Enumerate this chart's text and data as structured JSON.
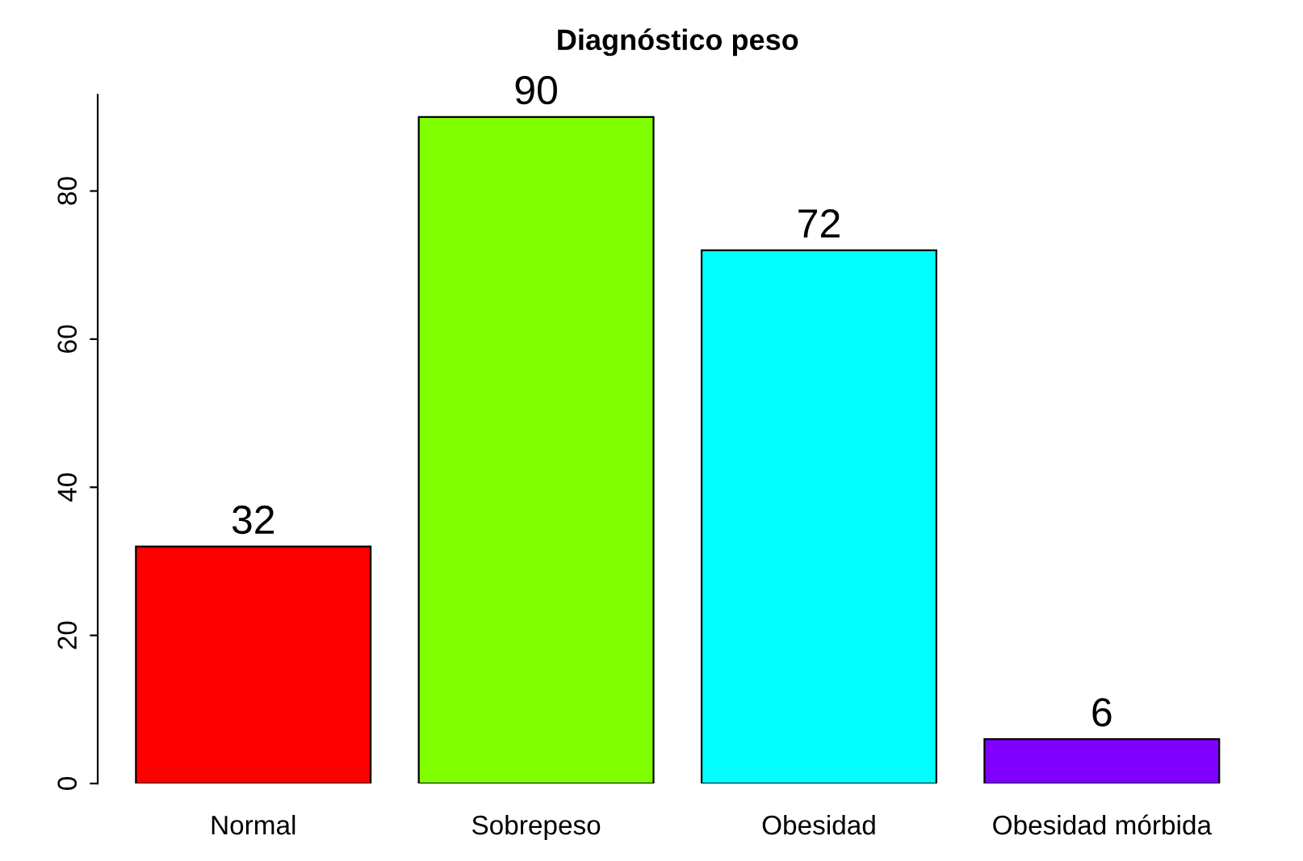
{
  "chart_data": {
    "type": "bar",
    "title": "Diagnóstico peso",
    "categories": [
      "Normal",
      "Sobrepeso",
      "Obesidad",
      "Obesidad mórbida"
    ],
    "values": [
      32,
      90,
      72,
      6
    ],
    "colors": [
      "#ff0000",
      "#80ff00",
      "#00ffff",
      "#8000ff"
    ],
    "ylim": [
      0,
      93
    ],
    "yticks": [
      0,
      20,
      40,
      60,
      80
    ],
    "grid": false,
    "data_labels": true
  }
}
